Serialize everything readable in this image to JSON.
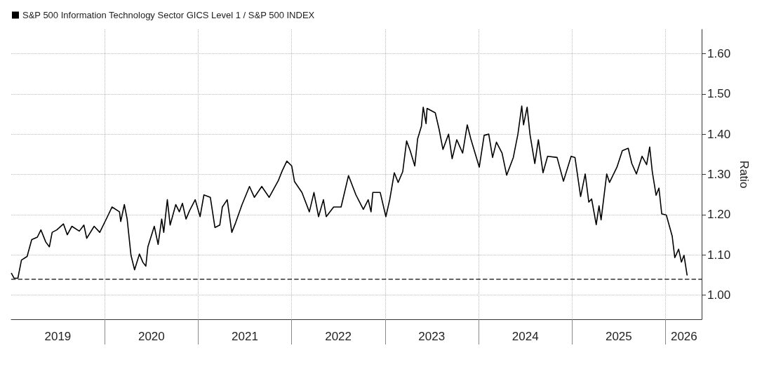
{
  "chart_data": {
    "type": "line",
    "ylabel": "Ratio",
    "legend": "top left",
    "grid": true,
    "marker": "none",
    "line_style": "solid",
    "xlim": [
      "2019-01-01",
      "2026-05-22"
    ],
    "ylim": [
      0.94,
      1.66
    ],
    "yticks": [
      {
        "value": 1,
        "label": "1.00"
      },
      {
        "value": 1.1,
        "label": "1.10"
      },
      {
        "value": 1.2,
        "label": "1.20"
      },
      {
        "value": 1.3,
        "label": "1.30"
      },
      {
        "value": 1.4,
        "label": "1.40"
      },
      {
        "value": 1.5,
        "label": "1.50"
      },
      {
        "value": 1.6,
        "label": "1.60"
      }
    ],
    "xticks": [
      {
        "value": "2020-01-01",
        "label": null
      },
      {
        "value": "2021-01-01",
        "label": null
      },
      {
        "value": "2022-01-01",
        "label": null
      },
      {
        "value": "2023-01-01",
        "label": null
      },
      {
        "value": "2024-01-01",
        "label": null
      },
      {
        "value": "2025-01-01",
        "label": null
      },
      {
        "value": "2026-01-01",
        "label": null
      },
      {
        "value": "2019-07-02",
        "label": "2019"
      },
      {
        "value": "2020-07-02",
        "label": "2020"
      },
      {
        "value": "2021-07-02",
        "label": "2021"
      },
      {
        "value": "2022-07-02",
        "label": "2022"
      },
      {
        "value": "2023-07-02",
        "label": "2023"
      },
      {
        "value": "2024-07-02",
        "label": "2024"
      },
      {
        "value": "2025-07-02",
        "label": "2025"
      },
      {
        "value": "2026-03-14",
        "label": "2026"
      }
    ],
    "ref_lines": [
      {
        "axis": "y",
        "value": 1.04,
        "color": "#333333",
        "line_style": "dashed"
      }
    ],
    "series": [
      {
        "name": "S&P 500 Information Technology Sector GICS Level 1 / S&P 500 INDEX",
        "color": "#000000",
        "x": [
          "2019-01-02",
          "2019-01-12",
          "2019-01-27",
          "2019-02-10",
          "2019-03-04",
          "2019-03-22",
          "2019-04-13",
          "2019-04-27",
          "2019-05-16",
          "2019-05-30",
          "2019-06-10",
          "2019-06-28",
          "2019-07-24",
          "2019-08-08",
          "2019-08-26",
          "2019-09-24",
          "2019-10-12",
          "2019-10-23",
          "2019-11-21",
          "2019-12-13",
          "2020-01-12",
          "2020-01-30",
          "2020-02-28",
          "2020-03-04",
          "2020-03-18",
          "2020-03-29",
          "2020-04-13",
          "2020-04-27",
          "2020-05-16",
          "2020-05-30",
          "2020-06-10",
          "2020-06-18",
          "2020-07-13",
          "2020-07-28",
          "2020-08-11",
          "2020-08-19",
          "2020-09-02",
          "2020-09-13",
          "2020-10-05",
          "2020-10-19",
          "2020-10-31",
          "2020-11-14",
          "2020-11-28",
          "2020-12-20",
          "2021-01-08",
          "2021-01-23",
          "2021-02-17",
          "2021-03-07",
          "2021-03-26",
          "2021-04-05",
          "2021-04-24",
          "2021-05-12",
          "2021-05-27",
          "2021-06-21",
          "2021-07-20",
          "2021-08-08",
          "2021-09-06",
          "2021-10-05",
          "2021-11-10",
          "2021-11-25",
          "2021-12-13",
          "2022-01-01",
          "2022-01-12",
          "2022-02-10",
          "2022-03-11",
          "2022-03-29",
          "2022-04-16",
          "2022-05-05",
          "2022-05-16",
          "2022-06-14",
          "2022-07-13",
          "2022-08-11",
          "2022-09-09",
          "2022-10-08",
          "2022-10-27",
          "2022-11-07",
          "2022-11-14",
          "2022-12-13",
          "2023-01-04",
          "2023-01-19",
          "2023-02-06",
          "2023-02-21",
          "2023-03-11",
          "2023-03-26",
          "2023-04-09",
          "2023-04-27",
          "2023-05-08",
          "2023-05-23",
          "2023-05-30",
          "2023-06-10",
          "2023-06-14",
          "2023-07-16",
          "2023-07-31",
          "2023-08-15",
          "2023-09-06",
          "2023-09-20",
          "2023-10-08",
          "2023-10-31",
          "2023-11-18",
          "2023-12-02",
          "2024-01-04",
          "2024-01-23",
          "2024-02-10",
          "2024-02-25",
          "2024-03-11",
          "2024-04-02",
          "2024-04-20",
          "2024-05-16",
          "2024-06-03",
          "2024-06-18",
          "2024-06-25",
          "2024-07-09",
          "2024-07-20",
          "2024-08-08",
          "2024-08-22",
          "2024-09-09",
          "2024-09-27",
          "2024-11-03",
          "2024-11-28",
          "2024-12-28",
          "2025-01-12",
          "2025-02-03",
          "2025-02-21",
          "2025-03-07",
          "2025-03-18",
          "2025-04-05",
          "2025-04-16",
          "2025-04-24",
          "2025-05-16",
          "2025-05-27",
          "2025-06-25",
          "2025-07-16",
          "2025-08-08",
          "2025-08-22",
          "2025-09-09",
          "2025-10-01",
          "2025-10-19",
          "2025-10-31",
          "2025-11-10",
          "2025-11-25",
          "2025-12-06",
          "2025-12-17",
          "2026-01-04",
          "2026-01-27",
          "2026-02-06",
          "2026-02-21",
          "2026-03-04",
          "2026-03-14",
          "2026-03-26"
        ],
        "values": [
          1.054,
          1.042,
          1.042,
          1.087,
          1.096,
          1.138,
          1.144,
          1.162,
          1.132,
          1.12,
          1.156,
          1.162,
          1.177,
          1.15,
          1.171,
          1.159,
          1.174,
          1.141,
          1.171,
          1.156,
          1.195,
          1.219,
          1.207,
          1.183,
          1.225,
          1.189,
          1.099,
          1.063,
          1.102,
          1.081,
          1.072,
          1.12,
          1.171,
          1.126,
          1.189,
          1.156,
          1.237,
          1.174,
          1.225,
          1.207,
          1.228,
          1.189,
          1.21,
          1.237,
          1.195,
          1.249,
          1.243,
          1.168,
          1.174,
          1.219,
          1.237,
          1.156,
          1.18,
          1.225,
          1.27,
          1.243,
          1.27,
          1.243,
          1.285,
          1.309,
          1.333,
          1.321,
          1.282,
          1.255,
          1.207,
          1.255,
          1.195,
          1.237,
          1.195,
          1.219,
          1.219,
          1.297,
          1.249,
          1.213,
          1.237,
          1.207,
          1.255,
          1.255,
          1.195,
          1.237,
          1.304,
          1.28,
          1.307,
          1.383,
          1.359,
          1.321,
          1.388,
          1.42,
          1.467,
          1.426,
          1.464,
          1.453,
          1.412,
          1.362,
          1.4,
          1.339,
          1.386,
          1.353,
          1.423,
          1.388,
          1.318,
          1.397,
          1.4,
          1.342,
          1.38,
          1.353,
          1.298,
          1.342,
          1.4,
          1.47,
          1.423,
          1.467,
          1.4,
          1.327,
          1.386,
          1.304,
          1.345,
          1.342,
          1.283,
          1.345,
          1.342,
          1.245,
          1.301,
          1.231,
          1.239,
          1.175,
          1.222,
          1.187,
          1.301,
          1.28,
          1.318,
          1.359,
          1.365,
          1.327,
          1.301,
          1.345,
          1.324,
          1.368,
          1.307,
          1.248,
          1.266,
          1.202,
          1.199,
          1.146,
          1.093,
          1.114,
          1.082,
          1.099,
          1.05
        ]
      }
    ]
  }
}
